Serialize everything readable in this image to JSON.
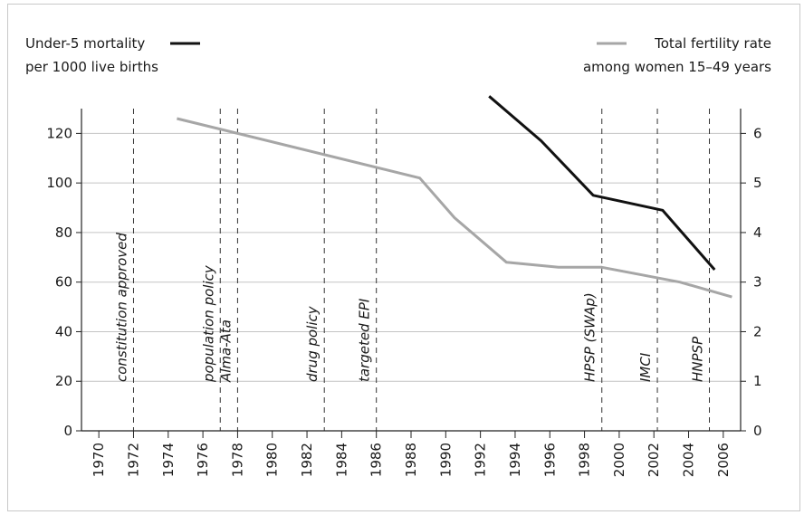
{
  "chart_data": {
    "type": "line",
    "x_ticks": [
      "1970",
      "1972",
      "1974",
      "1976",
      "1978",
      "1980",
      "1982",
      "1984",
      "1986",
      "1988",
      "1990",
      "1992",
      "1994",
      "1996",
      "1998",
      "2000",
      "2002",
      "2004",
      "2006"
    ],
    "xlim": [
      1969,
      2007
    ],
    "ylim_left": [
      0,
      130
    ],
    "y_ticks_left": [
      "0",
      "20",
      "40",
      "60",
      "80",
      "100",
      "120"
    ],
    "ylim_right": [
      0,
      6.5
    ],
    "y_ticks_right": [
      "0",
      "1",
      "2",
      "3",
      "4",
      "5",
      "6"
    ],
    "grid": "horizontal",
    "series": [
      {
        "name": "Under-5 mortality per 1000 live births",
        "axis": "left",
        "color": "#111111",
        "x": [
          1992.5,
          1995.5,
          1998.5,
          2002.5,
          2005.5
        ],
        "y": [
          135,
          117,
          95,
          89,
          65
        ]
      },
      {
        "name": "Total fertility rate among women 15–49 years",
        "axis": "right",
        "color": "#a6a6a6",
        "x": [
          1974.5,
          1988.5,
          1990.5,
          1993.5,
          1996.5,
          1999,
          2003.5,
          2006.5
        ],
        "y": [
          6.3,
          5.1,
          4.3,
          3.4,
          3.3,
          3.3,
          3.0,
          2.7
        ]
      }
    ],
    "events": [
      {
        "year": 1972,
        "label": "constitution approved"
      },
      {
        "year": 1977,
        "label": "population policy"
      },
      {
        "year": 1978,
        "label": "Alma-Ata"
      },
      {
        "year": 1983,
        "label": "drug policy"
      },
      {
        "year": 1986,
        "label": "targeted EPI"
      },
      {
        "year": 1999,
        "label": "HPSP (SWAp)"
      },
      {
        "year": 2002.2,
        "label": "IMCI"
      },
      {
        "year": 2005.2,
        "label": "HNPSP"
      }
    ]
  },
  "legend": {
    "left_line1": "Under-5 mortality",
    "left_line2": "per 1000 live births",
    "right_line1": "Total fertility rate",
    "right_line2": "among women 15–49 years"
  }
}
